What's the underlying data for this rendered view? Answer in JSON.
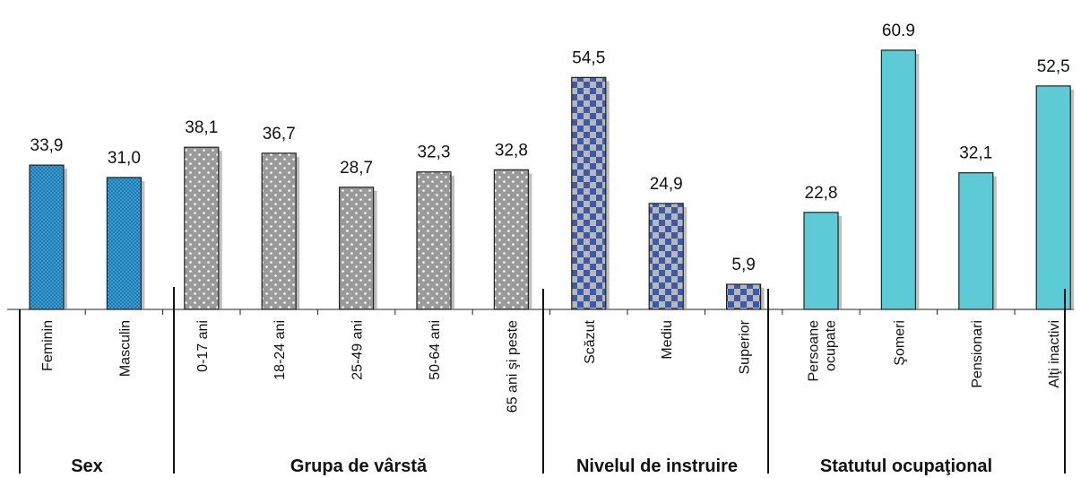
{
  "chart_data": {
    "type": "bar",
    "ylim": [
      0,
      62
    ],
    "groups": [
      {
        "name": "Sex",
        "style": "blue-fine-check",
        "categories": [
          "Feminin",
          "Masculin"
        ],
        "values": [
          33.9,
          31.0
        ],
        "labels": [
          "33,9",
          "31,0"
        ]
      },
      {
        "name": "Grupa de vârstă",
        "style": "gray-dots",
        "categories": [
          "0-17 ani",
          "18-24 ani",
          "25-49 ani",
          "50-64 ani",
          "65 ani şi peste"
        ],
        "values": [
          38.1,
          36.7,
          28.7,
          32.3,
          32.8
        ],
        "labels": [
          "38,1",
          "36,7",
          "28,7",
          "32,3",
          "32,8"
        ]
      },
      {
        "name": "Nivelul de instruire",
        "style": "blue-gray-checker",
        "categories": [
          "Scăzut",
          "Mediu",
          "Superior"
        ],
        "values": [
          54.5,
          24.9,
          5.9
        ],
        "labels": [
          "54,5",
          "24,9",
          "5,9"
        ]
      },
      {
        "name": "Statutul ocupaţional",
        "style": "cyan",
        "categories": [
          "Persoane ocupate",
          "Şomeri",
          "Pensionari",
          "Alţi inactivi"
        ],
        "values": [
          22.8,
          60.9,
          32.1,
          52.5
        ],
        "labels": [
          "22,8",
          "60.9",
          "32,1",
          "52,5"
        ]
      }
    ],
    "colors": {
      "blue": "#3a9cd0",
      "gray": "#9a9a9a",
      "checker_blue": "#3b5aa8",
      "checker_gray": "#b8b8b8",
      "cyan": "#5ccbd6",
      "outline": "#222222"
    }
  }
}
